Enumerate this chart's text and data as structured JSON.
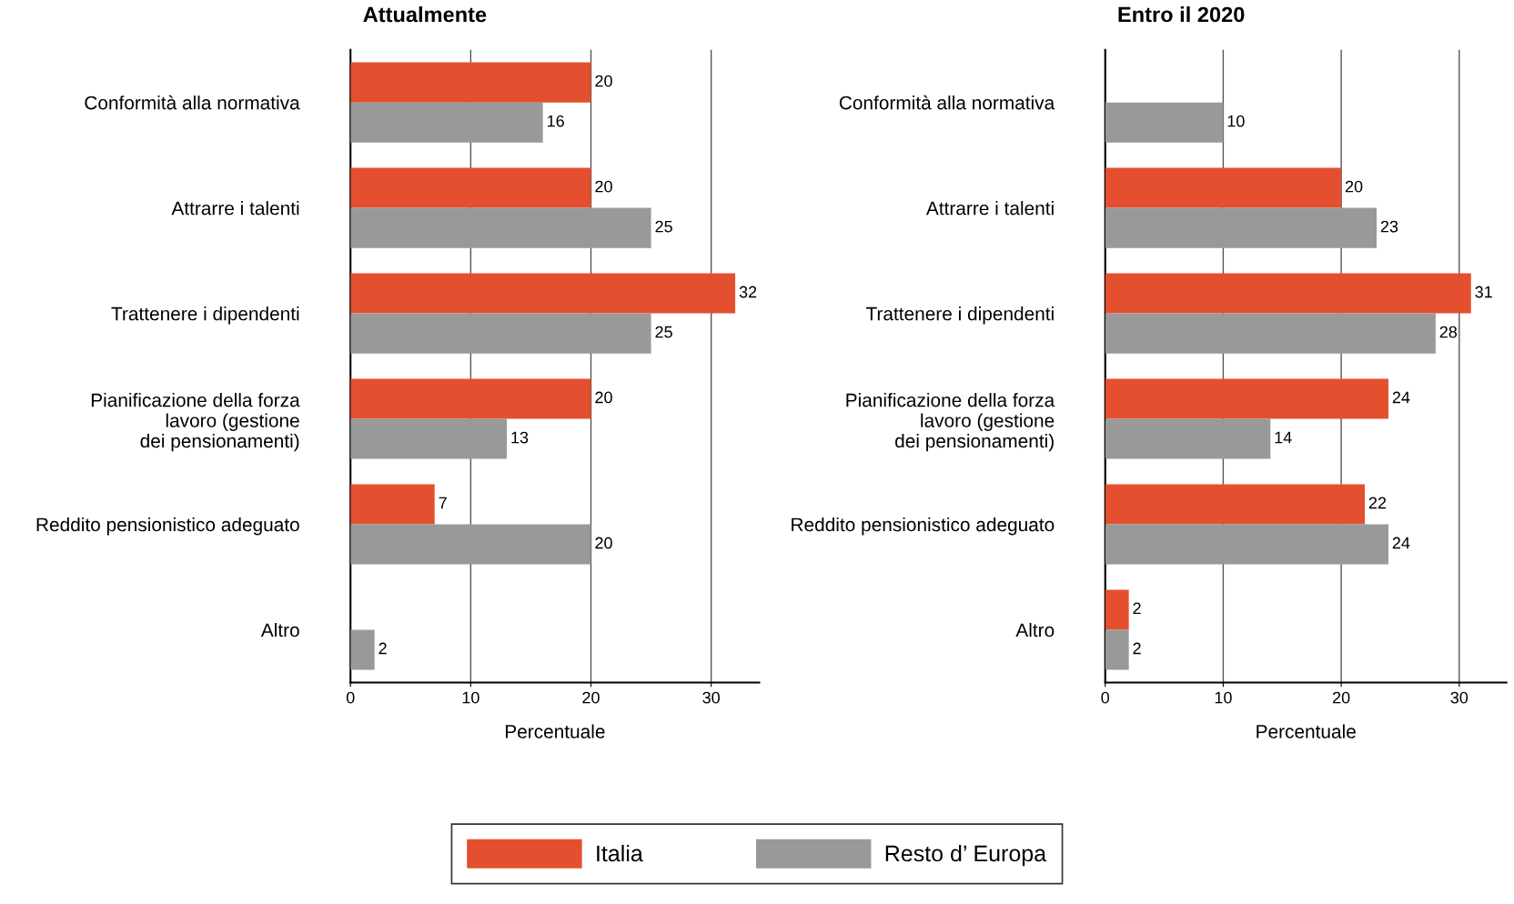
{
  "chart_data": [
    {
      "type": "bar",
      "orientation": "horizontal",
      "title": "Attualmente",
      "xlabel": "Percentuale",
      "categories": [
        "Conformità alla normativa",
        "Attrarre i talenti",
        "Trattenere i dipendenti",
        "Pianificazione della forza\nlavoro (gestione\ndei pensionamenti)",
        "Reddito pensionistico adeguato",
        "Altro"
      ],
      "series": [
        {
          "name": "Italia",
          "color": "#e4502f",
          "values": [
            20,
            20,
            32,
            20,
            7,
            null
          ]
        },
        {
          "name": "Resto d’ Europa",
          "color": "#999999",
          "values": [
            16,
            25,
            25,
            13,
            20,
            2
          ]
        }
      ],
      "xlim": [
        0,
        34
      ],
      "xticks": [
        0,
        10,
        20,
        30
      ],
      "grid": "x",
      "data_labels": true,
      "legend": "bottom"
    },
    {
      "type": "bar",
      "orientation": "horizontal",
      "title": "Entro il 2020",
      "xlabel": "Percentuale",
      "categories": [
        "Conformità alla normativa",
        "Attrarre i talenti",
        "Trattenere i dipendenti",
        "Pianificazione della forza\nlavoro (gestione\ndei pensionamenti)",
        "Reddito pensionistico adeguato",
        "Altro"
      ],
      "series": [
        {
          "color": "#e4502f",
          "values": [
            null,
            20,
            31,
            24,
            22,
            2
          ]
        },
        {
          "color": "#999999",
          "values": [
            10,
            23,
            28,
            14,
            24,
            2
          ]
        }
      ],
      "xlim": [
        0,
        34
      ],
      "xticks": [
        0,
        10,
        20,
        30
      ],
      "grid": "x",
      "data_labels": true
    }
  ]
}
